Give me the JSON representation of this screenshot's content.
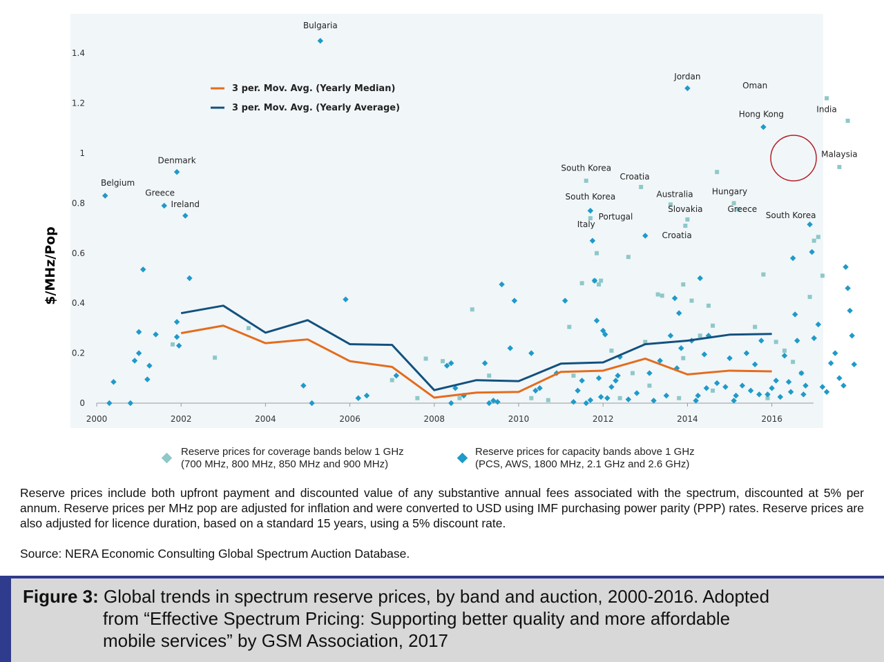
{
  "chart_data": {
    "type": "scatter",
    "ylabel": "$/MHz/Pop",
    "xlim": [
      2000,
      2017.1
    ],
    "ylim": [
      0,
      1.5
    ],
    "x_ticks": [
      "2000",
      "2002",
      "2004",
      "2006",
      "2008",
      "2010",
      "2012",
      "2014",
      "2016"
    ],
    "y_ticks": [
      "0",
      "0.2",
      "0.4",
      "0.6",
      "0.8",
      "1",
      "1.2",
      "1.4"
    ],
    "grid": false,
    "legend_position": "top-left",
    "colors": {
      "coverage": "#8ec8c8",
      "capacity": "#1f9ac9",
      "median_line": "#e46c1c",
      "average_line": "#12517e"
    },
    "series": [
      {
        "name": "3 per. Mov. Avg. (Yearly Median)",
        "kind": "line",
        "x": [
          2002,
          2003,
          2004,
          2005,
          2006,
          2007,
          2008,
          2009,
          2010,
          2011,
          2012,
          2013,
          2014,
          2015,
          2016
        ],
        "y": [
          0.28,
          0.31,
          0.24,
          0.255,
          0.168,
          0.145,
          0.022,
          0.042,
          0.045,
          0.125,
          0.13,
          0.178,
          0.115,
          0.13,
          0.127
        ]
      },
      {
        "name": "3 per. Mov. Avg. (Yearly Average)",
        "kind": "line",
        "x": [
          2002,
          2003,
          2004,
          2005,
          2006,
          2007,
          2008,
          2009,
          2010,
          2011,
          2012,
          2013,
          2014,
          2015,
          2016
        ],
        "y": [
          0.36,
          0.39,
          0.282,
          0.332,
          0.236,
          0.233,
          0.052,
          0.092,
          0.088,
          0.158,
          0.163,
          0.236,
          0.25,
          0.274,
          0.277
        ]
      },
      {
        "name": "Reserve prices for coverage bands below 1 GHz",
        "kind": "square",
        "points": [
          [
            2001.8,
            0.235
          ],
          [
            2002.8,
            0.182
          ],
          [
            2003.6,
            0.3
          ],
          [
            2007.0,
            0.092
          ],
          [
            2007.6,
            0.02
          ],
          [
            2007.8,
            0.178
          ],
          [
            2008.2,
            0.168
          ],
          [
            2008.6,
            0.02
          ],
          [
            2008.9,
            0.375
          ],
          [
            2009.3,
            0.11
          ],
          [
            2010.3,
            0.02
          ],
          [
            2010.7,
            0.012
          ],
          [
            2011.2,
            0.305
          ],
          [
            2011.3,
            0.11
          ],
          [
            2011.5,
            0.48
          ],
          [
            2011.6,
            0.89
          ],
          [
            2011.7,
            0.74
          ],
          [
            2011.8,
            0.49
          ],
          [
            2011.85,
            0.6
          ],
          [
            2011.9,
            0.475
          ],
          [
            2011.95,
            0.49
          ],
          [
            2012.2,
            0.21
          ],
          [
            2012.4,
            0.02
          ],
          [
            2012.6,
            0.585
          ],
          [
            2012.7,
            0.12
          ],
          [
            2012.9,
            0.865
          ],
          [
            2013.0,
            0.245
          ],
          [
            2013.3,
            0.435
          ],
          [
            2013.4,
            0.43
          ],
          [
            2013.6,
            0.795
          ],
          [
            2013.8,
            0.02
          ],
          [
            2013.9,
            0.475
          ],
          [
            2013.95,
            0.71
          ],
          [
            2014.0,
            0.735
          ],
          [
            2014.1,
            0.41
          ],
          [
            2014.3,
            0.27
          ],
          [
            2014.5,
            0.39
          ],
          [
            2014.6,
            0.31
          ],
          [
            2014.7,
            0.925
          ],
          [
            2015.1,
            0.8
          ],
          [
            2015.2,
            0.775
          ],
          [
            2015.6,
            0.305
          ],
          [
            2015.8,
            0.515
          ],
          [
            2016.1,
            0.245
          ],
          [
            2016.3,
            0.21
          ],
          [
            2016.5,
            0.165
          ],
          [
            2016.9,
            0.425
          ],
          [
            2017.0,
            0.65
          ],
          [
            2017.1,
            0.665
          ],
          [
            2017.2,
            0.51
          ],
          [
            2017.3,
            1.22
          ],
          [
            2017.6,
            0.945
          ],
          [
            2017.8,
            1.13
          ],
          [
            2013.1,
            0.07
          ],
          [
            2013.9,
            0.18
          ],
          [
            2014.6,
            0.05
          ],
          [
            2015.9,
            0.02
          ],
          [
            2016.7,
            0.12
          ]
        ]
      },
      {
        "name": "Reserve prices for capacity bands above 1 GHz",
        "kind": "diamond",
        "points": [
          [
            2000.2,
            0.83
          ],
          [
            2000.3,
            0.0
          ],
          [
            2000.4,
            0.085
          ],
          [
            2000.8,
            0.0
          ],
          [
            2000.9,
            0.17
          ],
          [
            2001.0,
            0.285
          ],
          [
            2001.0,
            0.2
          ],
          [
            2001.1,
            0.535
          ],
          [
            2001.2,
            0.095
          ],
          [
            2001.25,
            0.15
          ],
          [
            2001.4,
            0.275
          ],
          [
            2001.6,
            0.79
          ],
          [
            2001.9,
            0.925
          ],
          [
            2001.9,
            0.325
          ],
          [
            2001.9,
            0.265
          ],
          [
            2001.95,
            0.23
          ],
          [
            2002.1,
            0.75
          ],
          [
            2002.2,
            0.5
          ],
          [
            2004.9,
            0.07
          ],
          [
            2005.1,
            0.0
          ],
          [
            2005.3,
            1.45
          ],
          [
            2005.9,
            0.415
          ],
          [
            2006.2,
            0.02
          ],
          [
            2006.4,
            0.03
          ],
          [
            2007.1,
            0.11
          ],
          [
            2008.3,
            0.15
          ],
          [
            2008.4,
            0.0
          ],
          [
            2008.4,
            0.16
          ],
          [
            2008.5,
            0.06
          ],
          [
            2008.7,
            0.03
          ],
          [
            2009.2,
            0.16
          ],
          [
            2009.3,
            0.0
          ],
          [
            2009.4,
            0.01
          ],
          [
            2009.5,
            0.005
          ],
          [
            2009.6,
            0.475
          ],
          [
            2009.8,
            0.22
          ],
          [
            2009.9,
            0.41
          ],
          [
            2010.3,
            0.2
          ],
          [
            2010.4,
            0.05
          ],
          [
            2010.5,
            0.06
          ],
          [
            2010.9,
            0.12
          ],
          [
            2011.1,
            0.41
          ],
          [
            2011.3,
            0.005
          ],
          [
            2011.4,
            0.05
          ],
          [
            2011.5,
            0.09
          ],
          [
            2011.6,
            0.0
          ],
          [
            2011.7,
            0.012
          ],
          [
            2011.7,
            0.77
          ],
          [
            2011.75,
            0.65
          ],
          [
            2011.8,
            0.49
          ],
          [
            2011.85,
            0.33
          ],
          [
            2011.9,
            0.1
          ],
          [
            2011.95,
            0.025
          ],
          [
            2012.0,
            0.29
          ],
          [
            2012.05,
            0.275
          ],
          [
            2012.1,
            0.02
          ],
          [
            2012.2,
            0.065
          ],
          [
            2012.3,
            0.09
          ],
          [
            2012.35,
            0.11
          ],
          [
            2012.4,
            0.185
          ],
          [
            2012.6,
            0.015
          ],
          [
            2012.8,
            0.04
          ],
          [
            2013.0,
            0.67
          ],
          [
            2013.1,
            0.12
          ],
          [
            2013.2,
            0.01
          ],
          [
            2013.35,
            0.17
          ],
          [
            2013.5,
            0.03
          ],
          [
            2013.6,
            0.27
          ],
          [
            2013.7,
            0.42
          ],
          [
            2013.75,
            0.14
          ],
          [
            2013.8,
            0.36
          ],
          [
            2013.85,
            0.22
          ],
          [
            2014.0,
            1.26
          ],
          [
            2014.1,
            0.25
          ],
          [
            2014.2,
            0.01
          ],
          [
            2014.25,
            0.03
          ],
          [
            2014.3,
            0.5
          ],
          [
            2014.4,
            0.195
          ],
          [
            2014.45,
            0.06
          ],
          [
            2014.5,
            0.27
          ],
          [
            2014.7,
            0.08
          ],
          [
            2014.9,
            0.065
          ],
          [
            2015.0,
            0.18
          ],
          [
            2015.1,
            0.01
          ],
          [
            2015.15,
            0.03
          ],
          [
            2015.3,
            0.07
          ],
          [
            2015.4,
            0.2
          ],
          [
            2015.5,
            0.05
          ],
          [
            2015.6,
            0.155
          ],
          [
            2015.7,
            0.035
          ],
          [
            2015.75,
            0.25
          ],
          [
            2015.8,
            1.105
          ],
          [
            2015.9,
            0.035
          ],
          [
            2016.0,
            0.06
          ],
          [
            2016.1,
            0.09
          ],
          [
            2016.2,
            0.025
          ],
          [
            2016.3,
            0.19
          ],
          [
            2016.4,
            0.085
          ],
          [
            2016.45,
            0.045
          ],
          [
            2016.5,
            0.58
          ],
          [
            2016.55,
            0.355
          ],
          [
            2016.6,
            0.25
          ],
          [
            2016.7,
            0.12
          ],
          [
            2016.75,
            0.035
          ],
          [
            2016.8,
            0.07
          ],
          [
            2016.9,
            0.715
          ],
          [
            2016.95,
            0.605
          ],
          [
            2017.0,
            0.26
          ],
          [
            2017.1,
            0.315
          ],
          [
            2017.2,
            0.065
          ],
          [
            2017.3,
            0.045
          ],
          [
            2017.4,
            0.16
          ],
          [
            2017.5,
            0.2
          ],
          [
            2017.6,
            0.1
          ],
          [
            2017.7,
            0.07
          ],
          [
            2017.75,
            0.545
          ],
          [
            2017.8,
            0.46
          ],
          [
            2017.85,
            0.37
          ],
          [
            2017.9,
            0.27
          ],
          [
            2017.95,
            0.155
          ]
        ]
      }
    ],
    "annotations": [
      {
        "text": "Bulgaria",
        "x": 2005.3,
        "y": 1.5
      },
      {
        "text": "Jordan",
        "x": 2014.0,
        "y": 1.295
      },
      {
        "text": "Oman",
        "x": 2015.6,
        "y": 1.26
      },
      {
        "text": "Hong Kong",
        "x": 2015.75,
        "y": 1.145
      },
      {
        "text": "India",
        "x": 2017.3,
        "y": 1.165
      },
      {
        "text": "Malaysia",
        "x": 2017.6,
        "y": 0.985
      },
      {
        "text": "Denmark",
        "x": 2001.9,
        "y": 0.96
      },
      {
        "text": "Belgium",
        "x": 2000.5,
        "y": 0.87
      },
      {
        "text": "Greece",
        "x": 2001.5,
        "y": 0.83
      },
      {
        "text": "Ireland",
        "x": 2002.1,
        "y": 0.785
      },
      {
        "text": "South Korea",
        "x": 2011.6,
        "y": 0.93
      },
      {
        "text": "Croatia",
        "x": 2012.75,
        "y": 0.895
      },
      {
        "text": "Australia",
        "x": 2013.7,
        "y": 0.825
      },
      {
        "text": "Hungary",
        "x": 2015.0,
        "y": 0.835
      },
      {
        "text": "South Korea",
        "x": 2011.7,
        "y": 0.815
      },
      {
        "text": "Slovakia",
        "x": 2013.95,
        "y": 0.765
      },
      {
        "text": "Greece",
        "x": 2015.3,
        "y": 0.765
      },
      {
        "text": "South Korea",
        "x": 2016.45,
        "y": 0.74
      },
      {
        "text": "Portugal",
        "x": 2012.3,
        "y": 0.735
      },
      {
        "text": "Italy",
        "x": 2011.6,
        "y": 0.705
      },
      {
        "text": "Croatia",
        "x": 2013.75,
        "y": 0.66
      }
    ]
  },
  "chart_legend": {
    "median_label": "3 per. Mov. Avg. (Yearly Median)",
    "average_label": "3 per. Mov. Avg. (Yearly Average)"
  },
  "bottom_legend": {
    "coverage_line1": "Reserve prices for coverage bands below 1 GHz",
    "coverage_line2": "(700 MHz, 800 MHz, 850 MHz and 900 MHz)",
    "capacity_line1": "Reserve prices for capacity bands above 1 GHz",
    "capacity_line2": "(PCS, AWS, 1800 MHz, 2.1 GHz and 2.6 GHz)"
  },
  "notes": "Reserve prices include both upfront payment and discounted value of any substantive annual fees associated with the spectrum, discounted at 5% per annum. Reserve prices per MHz pop are adjusted for inflation and were converted to USD using IMF purchasing power parity (PPP) rates. Reserve prices are also adjusted for licence duration, based on a standard 15 years, using a 5% discount rate.",
  "source": "Source: NERA Economic Consulting Global Spectrum Auction Database.",
  "caption": {
    "label": "Figure 3:",
    "line1": " Global trends in spectrum reserve prices, by band and auction, 2000-2016. Adopted",
    "line2": "from “Effective Spectrum Pricing: Supporting better quality and more affordable",
    "line3": "mobile services” by GSM Association, 2017"
  }
}
